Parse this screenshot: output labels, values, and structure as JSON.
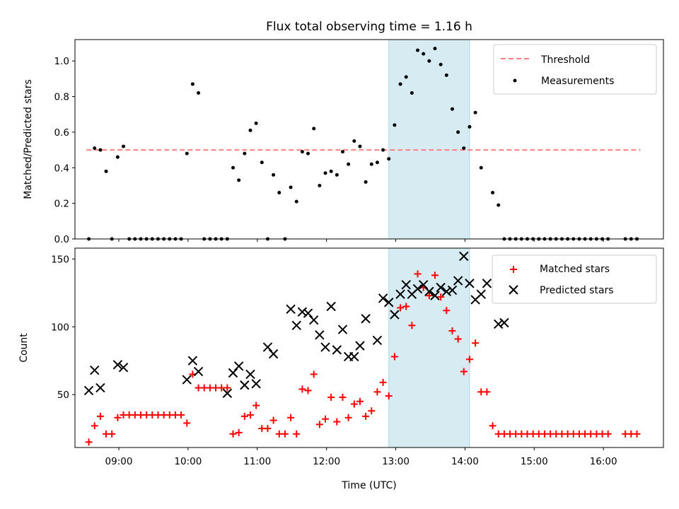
{
  "chart_data": [
    {
      "type": "scatter",
      "title": "Flux total observing time = 1.16 h",
      "xlabel": "",
      "ylabel": "Matched/Predicted stars",
      "xlim": [
        "08:22",
        "16:52"
      ],
      "ylim": [
        0,
        1.12
      ],
      "yticks": [
        0.0,
        0.2,
        0.4,
        0.6,
        0.8,
        1.0
      ],
      "highlight_span": [
        "12:54",
        "14:04"
      ],
      "highlight_color": "#add8e6",
      "threshold": {
        "name": "Threshold",
        "value": 0.5,
        "x_range": [
          "08:32",
          "16:32"
        ],
        "color": "#ff8080",
        "style": "dashed"
      },
      "legend": {
        "placement": "upper right",
        "entries": [
          "Threshold",
          "Measurements"
        ]
      },
      "series": [
        {
          "name": "Measurements",
          "marker": "dot",
          "color": "#000000",
          "points": [
            [
              "08:34",
              0.0
            ],
            [
              "08:39",
              0.51
            ],
            [
              "08:44",
              0.5
            ],
            [
              "08:49",
              0.38
            ],
            [
              "08:54",
              0.0
            ],
            [
              "08:59",
              0.46
            ],
            [
              "09:04",
              0.52
            ],
            [
              "09:09",
              0.0
            ],
            [
              "09:14",
              0.0
            ],
            [
              "09:19",
              0.0
            ],
            [
              "09:24",
              0.0
            ],
            [
              "09:29",
              0.0
            ],
            [
              "09:34",
              0.0
            ],
            [
              "09:39",
              0.0
            ],
            [
              "09:44",
              0.0
            ],
            [
              "09:49",
              0.0
            ],
            [
              "09:54",
              0.0
            ],
            [
              "09:59",
              0.48
            ],
            [
              "10:04",
              0.87
            ],
            [
              "10:09",
              0.82
            ],
            [
              "10:14",
              0.0
            ],
            [
              "10:19",
              0.0
            ],
            [
              "10:24",
              0.0
            ],
            [
              "10:29",
              0.0
            ],
            [
              "10:34",
              0.0
            ],
            [
              "10:39",
              0.4
            ],
            [
              "10:44",
              0.33
            ],
            [
              "10:49",
              0.48
            ],
            [
              "10:54",
              0.61
            ],
            [
              "10:59",
              0.65
            ],
            [
              "11:04",
              0.43
            ],
            [
              "11:09",
              0.0
            ],
            [
              "11:14",
              0.36
            ],
            [
              "11:19",
              0.26
            ],
            [
              "11:24",
              0.0
            ],
            [
              "11:29",
              0.29
            ],
            [
              "11:34",
              0.21
            ],
            [
              "11:39",
              0.49
            ],
            [
              "11:44",
              0.48
            ],
            [
              "11:49",
              0.62
            ],
            [
              "11:54",
              0.3
            ],
            [
              "11:59",
              0.37
            ],
            [
              "12:04",
              0.38
            ],
            [
              "12:09",
              0.36
            ],
            [
              "12:14",
              0.49
            ],
            [
              "12:19",
              0.42
            ],
            [
              "12:24",
              0.55
            ],
            [
              "12:29",
              0.52
            ],
            [
              "12:34",
              0.32
            ],
            [
              "12:39",
              0.42
            ],
            [
              "12:44",
              0.43
            ],
            [
              "12:49",
              0.5
            ],
            [
              "12:54",
              0.45
            ],
            [
              "12:59",
              0.64
            ],
            [
              "13:04",
              0.87
            ],
            [
              "13:09",
              0.91
            ],
            [
              "13:14",
              0.82
            ],
            [
              "13:19",
              1.06
            ],
            [
              "13:24",
              1.04
            ],
            [
              "13:29",
              1.0
            ],
            [
              "13:34",
              1.07
            ],
            [
              "13:39",
              0.98
            ],
            [
              "13:44",
              0.92
            ],
            [
              "13:49",
              0.73
            ],
            [
              "13:54",
              0.6
            ],
            [
              "13:59",
              0.51
            ],
            [
              "14:04",
              0.63
            ],
            [
              "14:09",
              0.71
            ],
            [
              "14:14",
              0.4
            ],
            [
              "14:24",
              0.26
            ],
            [
              "14:29",
              0.19
            ],
            [
              "14:34",
              0.0
            ],
            [
              "14:39",
              0.0
            ],
            [
              "14:44",
              0.0
            ],
            [
              "14:49",
              0.0
            ],
            [
              "14:54",
              0.0
            ],
            [
              "14:59",
              0.0
            ],
            [
              "15:04",
              0.0
            ],
            [
              "15:09",
              0.0
            ],
            [
              "15:14",
              0.0
            ],
            [
              "15:19",
              0.0
            ],
            [
              "15:24",
              0.0
            ],
            [
              "15:29",
              0.0
            ],
            [
              "15:34",
              0.0
            ],
            [
              "15:39",
              0.0
            ],
            [
              "15:44",
              0.0
            ],
            [
              "15:49",
              0.0
            ],
            [
              "15:54",
              0.0
            ],
            [
              "15:59",
              0.0
            ],
            [
              "16:04",
              0.0
            ],
            [
              "16:19",
              0.0
            ],
            [
              "16:24",
              0.0
            ],
            [
              "16:29",
              0.0
            ]
          ]
        }
      ]
    },
    {
      "type": "scatter",
      "title": "",
      "xlabel": "Time (UTC)",
      "ylabel": "Count",
      "xlim": [
        "08:22",
        "16:52"
      ],
      "ylim": [
        11,
        158
      ],
      "yticks": [
        50,
        100,
        150
      ],
      "xticks": [
        "09:00",
        "10:00",
        "11:00",
        "12:00",
        "13:00",
        "14:00",
        "15:00",
        "16:00"
      ],
      "highlight_span": [
        "12:54",
        "14:04"
      ],
      "highlight_color": "#add8e6",
      "legend": {
        "placement": "upper right",
        "entries": [
          "Matched stars",
          "Predicted stars"
        ]
      },
      "series": [
        {
          "name": "Matched stars",
          "marker": "plus",
          "color": "#ff0000",
          "points": [
            [
              "08:34",
              15
            ],
            [
              "08:39",
              27
            ],
            [
              "08:44",
              34
            ],
            [
              "08:49",
              21
            ],
            [
              "08:54",
              21
            ],
            [
              "08:59",
              33
            ],
            [
              "09:04",
              35
            ],
            [
              "09:09",
              35
            ],
            [
              "09:14",
              35
            ],
            [
              "09:19",
              35
            ],
            [
              "09:24",
              35
            ],
            [
              "09:29",
              35
            ],
            [
              "09:34",
              35
            ],
            [
              "09:39",
              35
            ],
            [
              "09:44",
              35
            ],
            [
              "09:49",
              35
            ],
            [
              "09:54",
              35
            ],
            [
              "09:59",
              29
            ],
            [
              "10:04",
              65
            ],
            [
              "10:09",
              55
            ],
            [
              "10:14",
              55
            ],
            [
              "10:19",
              55
            ],
            [
              "10:24",
              55
            ],
            [
              "10:29",
              55
            ],
            [
              "10:34",
              55
            ],
            [
              "10:39",
              21
            ],
            [
              "10:44",
              22
            ],
            [
              "10:49",
              34
            ],
            [
              "10:54",
              35
            ],
            [
              "10:59",
              42
            ],
            [
              "11:04",
              25
            ],
            [
              "11:09",
              25
            ],
            [
              "11:14",
              31
            ],
            [
              "11:19",
              21
            ],
            [
              "11:24",
              21
            ],
            [
              "11:29",
              33
            ],
            [
              "11:34",
              21
            ],
            [
              "11:39",
              54
            ],
            [
              "11:44",
              53
            ],
            [
              "11:49",
              65
            ],
            [
              "11:54",
              28
            ],
            [
              "11:59",
              32
            ],
            [
              "12:04",
              48
            ],
            [
              "12:09",
              30
            ],
            [
              "12:14",
              48
            ],
            [
              "12:19",
              33
            ],
            [
              "12:24",
              43
            ],
            [
              "12:29",
              45
            ],
            [
              "12:34",
              34
            ],
            [
              "12:39",
              38
            ],
            [
              "12:44",
              52
            ],
            [
              "12:49",
              59
            ],
            [
              "12:54",
              49
            ],
            [
              "12:59",
              78
            ],
            [
              "13:04",
              114
            ],
            [
              "13:09",
              115
            ],
            [
              "13:14",
              101
            ],
            [
              "13:19",
              139
            ],
            [
              "13:24",
              129
            ],
            [
              "13:29",
              123
            ],
            [
              "13:34",
              138
            ],
            [
              "13:39",
              122
            ],
            [
              "13:44",
              112
            ],
            [
              "13:49",
              97
            ],
            [
              "13:54",
              91
            ],
            [
              "13:59",
              67
            ],
            [
              "14:04",
              76
            ],
            [
              "14:09",
              88
            ],
            [
              "14:14",
              52
            ],
            [
              "14:19",
              52
            ],
            [
              "14:24",
              27
            ],
            [
              "14:29",
              21
            ],
            [
              "14:34",
              21
            ],
            [
              "14:39",
              21
            ],
            [
              "14:44",
              21
            ],
            [
              "14:49",
              21
            ],
            [
              "14:54",
              21
            ],
            [
              "14:59",
              21
            ],
            [
              "15:04",
              21
            ],
            [
              "15:09",
              21
            ],
            [
              "15:14",
              21
            ],
            [
              "15:19",
              21
            ],
            [
              "15:24",
              21
            ],
            [
              "15:29",
              21
            ],
            [
              "15:34",
              21
            ],
            [
              "15:39",
              21
            ],
            [
              "15:44",
              21
            ],
            [
              "15:49",
              21
            ],
            [
              "15:54",
              21
            ],
            [
              "15:59",
              21
            ],
            [
              "16:04",
              21
            ],
            [
              "16:19",
              21
            ],
            [
              "16:24",
              21
            ],
            [
              "16:29",
              21
            ]
          ]
        },
        {
          "name": "Predicted stars",
          "marker": "x",
          "color": "#000000",
          "points": [
            [
              "08:34",
              53
            ],
            [
              "08:39",
              68
            ],
            [
              "08:44",
              55
            ],
            [
              "08:59",
              72
            ],
            [
              "09:04",
              70
            ],
            [
              "09:59",
              61
            ],
            [
              "10:04",
              75
            ],
            [
              "10:09",
              67
            ],
            [
              "10:34",
              51
            ],
            [
              "10:39",
              66
            ],
            [
              "10:44",
              71
            ],
            [
              "10:49",
              57
            ],
            [
              "10:54",
              65
            ],
            [
              "10:59",
              58
            ],
            [
              "11:09",
              85
            ],
            [
              "11:14",
              80
            ],
            [
              "11:29",
              113
            ],
            [
              "11:34",
              101
            ],
            [
              "11:39",
              111
            ],
            [
              "11:44",
              110
            ],
            [
              "11:49",
              105
            ],
            [
              "11:54",
              94
            ],
            [
              "11:59",
              85
            ],
            [
              "12:04",
              115
            ],
            [
              "12:09",
              83
            ],
            [
              "12:14",
              98
            ],
            [
              "12:19",
              78
            ],
            [
              "12:24",
              78
            ],
            [
              "12:29",
              86
            ],
            [
              "12:34",
              106
            ],
            [
              "12:44",
              90
            ],
            [
              "12:49",
              121
            ],
            [
              "12:54",
              118
            ],
            [
              "12:59",
              109
            ],
            [
              "13:04",
              124
            ],
            [
              "13:09",
              131
            ],
            [
              "13:14",
              124
            ],
            [
              "13:19",
              128
            ],
            [
              "13:24",
              131
            ],
            [
              "13:29",
              126
            ],
            [
              "13:34",
              123
            ],
            [
              "13:39",
              129
            ],
            [
              "13:44",
              126
            ],
            [
              "13:49",
              127
            ],
            [
              "13:54",
              134
            ],
            [
              "13:59",
              152
            ],
            [
              "14:04",
              132
            ],
            [
              "14:09",
              120
            ],
            [
              "14:14",
              124
            ],
            [
              "14:19",
              132
            ],
            [
              "14:29",
              102
            ],
            [
              "14:34",
              103
            ]
          ]
        }
      ]
    }
  ]
}
